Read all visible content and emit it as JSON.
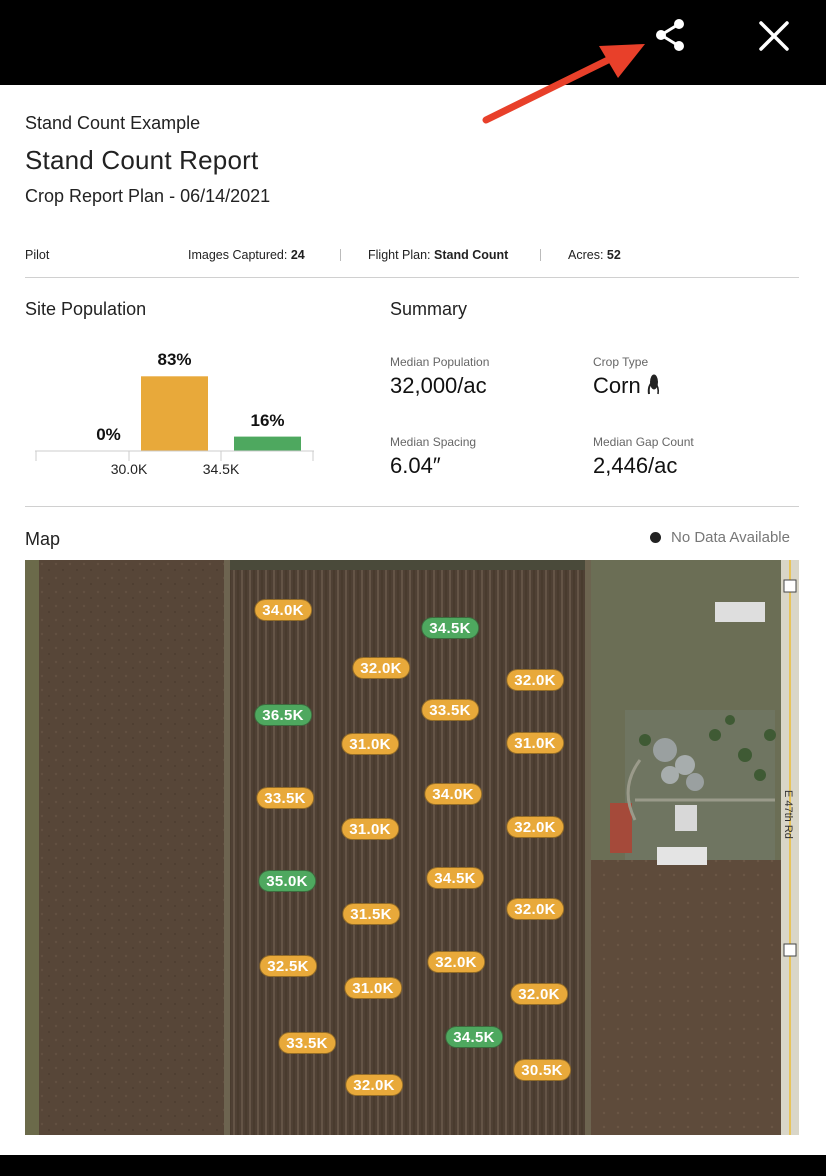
{
  "header": {
    "share_icon": "share-icon",
    "close_icon": "close-icon",
    "arrow_color": "#e8402a"
  },
  "report": {
    "subtitle": "Stand Count Example",
    "title": "Stand Count Report",
    "plan": "Crop Report Plan - 06/14/2021"
  },
  "meta": {
    "pilot_label": "Pilot",
    "images_label": "Images Captured: ",
    "images_value": "24",
    "flight_label": "Flight Plan: ",
    "flight_value": "Stand Count",
    "acres_label": "Acres: ",
    "acres_value": "52"
  },
  "site_population": {
    "title": "Site Population",
    "chart_data": {
      "type": "bar",
      "categories": [
        "< 30.0K",
        "30.0K - 34.5K",
        "> 34.5K"
      ],
      "values": [
        0,
        83,
        16
      ],
      "labels": [
        "0%",
        "83%",
        "16%"
      ],
      "ticks": [
        "30.0K",
        "34.5K"
      ],
      "colors": [
        "#e8a93a",
        "#e8a93a",
        "#4ea85f"
      ],
      "ylim": [
        0,
        100
      ]
    }
  },
  "summary": {
    "title": "Summary",
    "median_population_label": "Median Population",
    "median_population_value": "32,000/ac",
    "crop_type_label": "Crop Type",
    "crop_type_value": "Corn",
    "crop_icon": "corn-icon",
    "median_spacing_label": "Median Spacing",
    "median_spacing_value": "6.04″",
    "median_gap_label": "Median Gap Count",
    "median_gap_value": "2,446/ac"
  },
  "map": {
    "title": "Map",
    "legend": "No Data Available",
    "road_label": "E 47th Rd",
    "pins": [
      {
        "label": "34.0K",
        "color": "orange"
      },
      {
        "label": "34.5K",
        "color": "green"
      },
      {
        "label": "32.0K",
        "color": "orange"
      },
      {
        "label": "32.0K",
        "color": "orange"
      },
      {
        "label": "36.5K",
        "color": "green"
      },
      {
        "label": "33.5K",
        "color": "orange"
      },
      {
        "label": "31.0K",
        "color": "orange"
      },
      {
        "label": "31.0K",
        "color": "orange"
      },
      {
        "label": "33.5K",
        "color": "orange"
      },
      {
        "label": "34.0K",
        "color": "orange"
      },
      {
        "label": "31.0K",
        "color": "orange"
      },
      {
        "label": "32.0K",
        "color": "orange"
      },
      {
        "label": "35.0K",
        "color": "green"
      },
      {
        "label": "34.5K",
        "color": "orange"
      },
      {
        "label": "31.5K",
        "color": "orange"
      },
      {
        "label": "32.0K",
        "color": "orange"
      },
      {
        "label": "32.5K",
        "color": "orange"
      },
      {
        "label": "32.0K",
        "color": "orange"
      },
      {
        "label": "31.0K",
        "color": "orange"
      },
      {
        "label": "32.0K",
        "color": "orange"
      },
      {
        "label": "33.5K",
        "color": "orange"
      },
      {
        "label": "34.5K",
        "color": "green"
      },
      {
        "label": "30.5K",
        "color": "orange"
      },
      {
        "label": "32.0K",
        "color": "orange"
      }
    ]
  }
}
